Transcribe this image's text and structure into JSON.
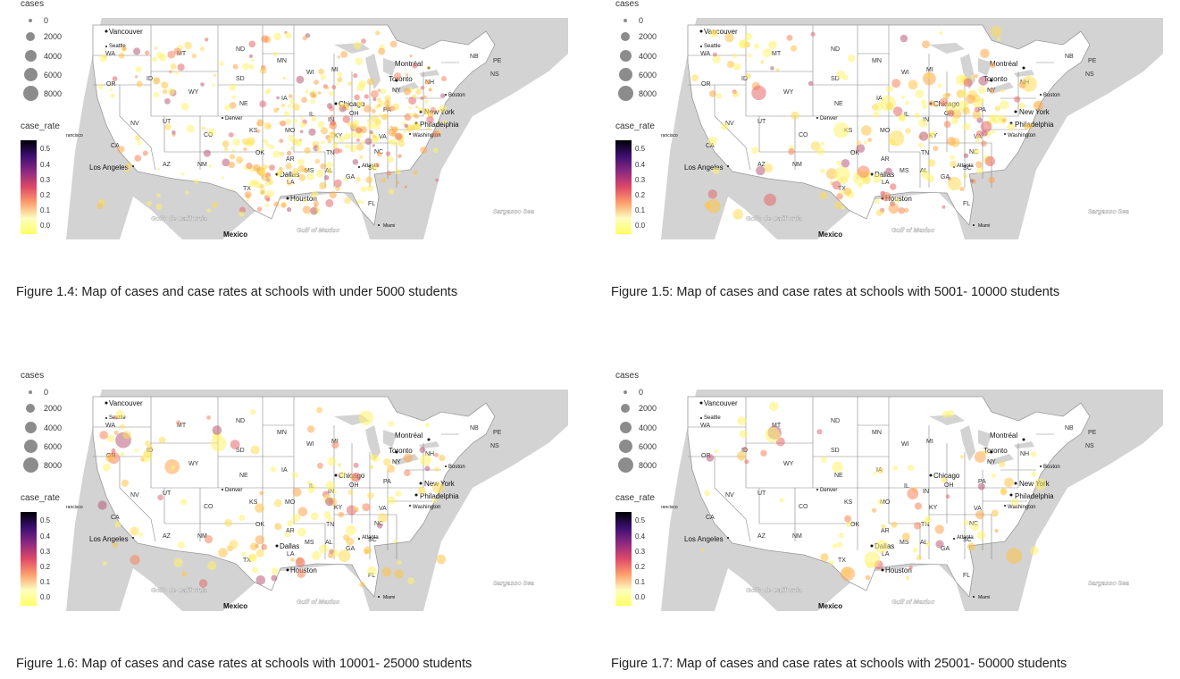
{
  "legend": {
    "size_title": "cases",
    "size_labels": [
      "0",
      "2000",
      "4000",
      "6000",
      "8000"
    ],
    "color_title": "case_rate",
    "color_labels": [
      "0.5",
      "0.4",
      "0.3",
      "0.2",
      "0.1",
      "0.0"
    ]
  },
  "map_labels": {
    "states": [
      "WA",
      "OR",
      "CA",
      "ID",
      "NV",
      "MT",
      "WY",
      "UT",
      "AZ",
      "CO",
      "NM",
      "ND",
      "SD",
      "NE",
      "KS",
      "OK",
      "TX",
      "MN",
      "IA",
      "MO",
      "AR",
      "LA",
      "WI",
      "IL",
      "MI",
      "IN",
      "OH",
      "KY",
      "TN",
      "MS",
      "AL",
      "GA",
      "FL",
      "SC",
      "NC",
      "VA",
      "PA",
      "NY",
      "NH",
      "NB",
      "PE",
      "NS"
    ],
    "cities": [
      "Vancouver",
      "Seattle",
      "Los Angeles",
      "Denver",
      "Dallas",
      "Houston",
      "Chicago",
      "Toronto",
      "Montréal",
      "New York",
      "Philadelphia",
      "Boston",
      "Washington",
      "Atlanta",
      "Miami"
    ],
    "water": [
      "Golfo de California",
      "Gulf of Mexico",
      "Sargasso Sea"
    ],
    "country": "Mexico",
    "misc": "rancisco"
  },
  "colors": {
    "land": "#ffffff",
    "ocean_other": "#d3d3d3",
    "border": "#999999"
  },
  "panels": [
    {
      "caption": "Figure 1.4: Map of cases and case rates at schools with under 5000 students",
      "group": "under 5000 students"
    },
    {
      "caption": "Figure 1.5: Map of cases and case rates at schools with 5001- 10000 students",
      "group": "5001-10000 students"
    },
    {
      "caption": "Figure 1.6: Map of cases and case rates at schools with 10001- 25000 students",
      "group": "10001-25000 students"
    },
    {
      "caption": "Figure 1.7: Map of cases and case rates at schools with 25001- 50000 students",
      "group": "25001-50000 students"
    }
  ]
}
